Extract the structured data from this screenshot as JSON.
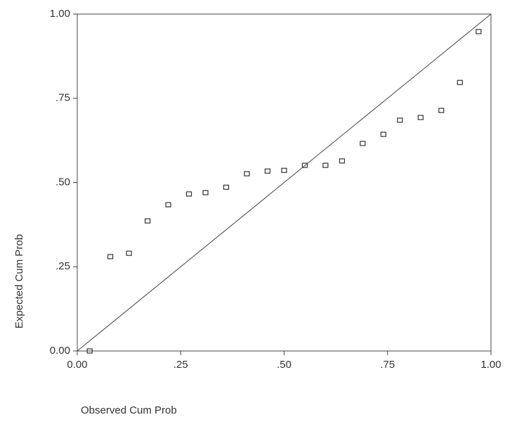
{
  "chart_data": {
    "type": "scatter",
    "xlabel": "Observed Cum Prob",
    "ylabel": "Expected Cum Prob",
    "x": [
      0.03,
      0.08,
      0.125,
      0.17,
      0.22,
      0.27,
      0.31,
      0.36,
      0.41,
      0.46,
      0.5,
      0.55,
      0.6,
      0.64,
      0.69,
      0.74,
      0.78,
      0.83,
      0.88,
      0.925,
      0.97
    ],
    "values": [
      0.0,
      0.28,
      0.29,
      0.386,
      0.434,
      0.466,
      0.47,
      0.486,
      0.526,
      0.534,
      0.536,
      0.551,
      0.551,
      0.564,
      0.616,
      0.643,
      0.685,
      0.693,
      0.714,
      0.797,
      0.948
    ],
    "color": "#333333",
    "xlim": [
      0,
      1
    ],
    "ylim": [
      0,
      1
    ],
    "xticks": [
      {
        "value": 0,
        "label": "0.00"
      },
      {
        "value": 0.25,
        "label": ".25"
      },
      {
        "value": 0.5,
        "label": ".50"
      },
      {
        "value": 0.75,
        "label": ".75"
      },
      {
        "value": 1,
        "label": "1.00"
      }
    ],
    "yticks": [
      {
        "value": 0,
        "label": "0.00"
      },
      {
        "value": 0.25,
        "label": ".25"
      },
      {
        "value": 0.5,
        "label": ".50"
      },
      {
        "value": 0.75,
        "label": ".75"
      },
      {
        "value": 1,
        "label": "1.00"
      }
    ],
    "grid": false
  }
}
